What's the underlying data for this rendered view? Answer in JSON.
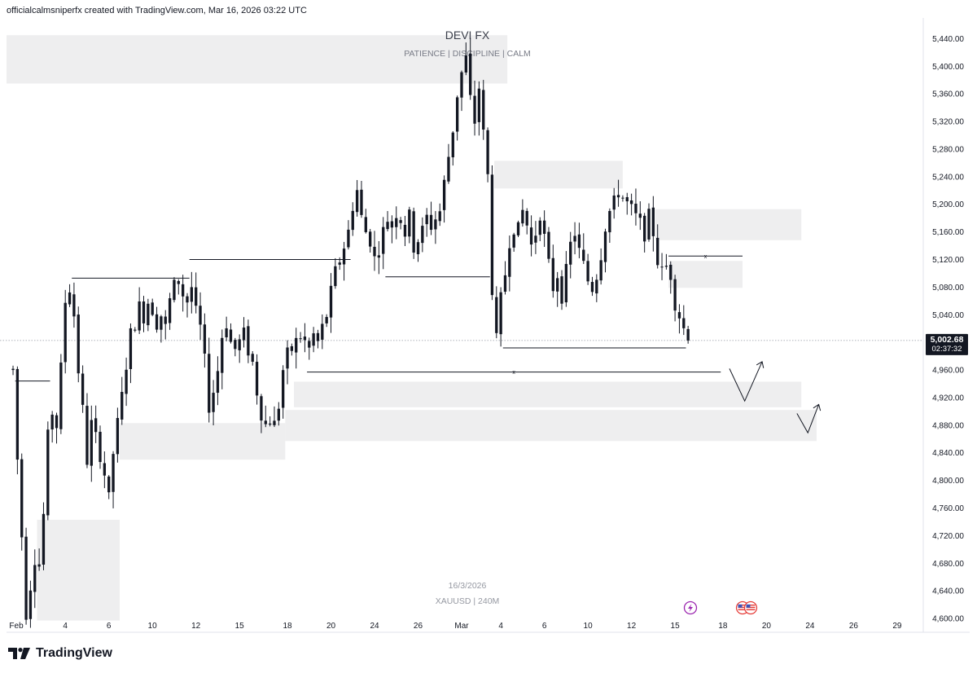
{
  "header": {
    "credit": "officialcalmsniperfx created with TradingView.com, Mar 16, 2026 03:22 UTC"
  },
  "watermark": {
    "title": "DEVI FX",
    "subtitle": "PATIENCE   |   DISCIPLINE   |  CALM",
    "date": "16/3/2026",
    "symbol": "XAUUSD | 240M"
  },
  "price_label": {
    "value": "5,002.68",
    "countdown": "02:37:32"
  },
  "brand": {
    "name": "TradingView"
  },
  "colors": {
    "bull": "#131722",
    "bear": "#131722",
    "zone": "#eeeeef",
    "line": "#131722",
    "lightning": "#9c27b0",
    "flag": "#e53935"
  },
  "icons": {
    "event_1": "lightning-icon",
    "event_2": "us-flag-icon"
  },
  "chart_data": {
    "type": "candlestick",
    "symbol": "XAUUSD",
    "timeframe": "240M",
    "y_ticks": [
      5440,
      5400,
      5360,
      5320,
      5280,
      5240,
      5200,
      5160,
      5120,
      5080,
      5040,
      4960,
      4920,
      4880,
      4840,
      4800,
      4760,
      4720,
      4680,
      4640,
      4600
    ],
    "y_tick_labels": [
      "5,440.00",
      "5,400.00",
      "5,360.00",
      "5,320.00",
      "5,280.00",
      "5,240.00",
      "5,200.00",
      "5,160.00",
      "5,120.00",
      "5,080.00",
      "5,040.00",
      "4,960.00",
      "4,920.00",
      "4,880.00",
      "4,840.00",
      "4,800.00",
      "4,760.00",
      "4,720.00",
      "4,680.00",
      "4,640.00",
      "4,600.00"
    ],
    "y_range": [
      4580,
      5470
    ],
    "x_labels": [
      "Feb",
      "4",
      "6",
      "10",
      "12",
      "15",
      "18",
      "20",
      "24",
      "26",
      "Mar",
      "4",
      "6",
      "10",
      "12",
      "15",
      "18",
      "20",
      "24",
      "26",
      "29"
    ],
    "x_label_slots": [
      0,
      12,
      22,
      32,
      42,
      52,
      63,
      73,
      83,
      93,
      103,
      112,
      122,
      132,
      142,
      152,
      163,
      173,
      183,
      193,
      203
    ],
    "x_slot_range": [
      -1.5,
      209
    ],
    "current_price": 5002.68,
    "anchors": [
      [
        0,
        4960
      ],
      [
        1,
        4830
      ],
      [
        2,
        4720
      ],
      [
        3,
        4610
      ],
      [
        4,
        4650
      ],
      [
        5,
        4690
      ],
      [
        6,
        4680
      ],
      [
        7,
        4750
      ],
      [
        8,
        4860
      ],
      [
        9,
        4900
      ],
      [
        10,
        4880
      ],
      [
        11,
        4960
      ],
      [
        12,
        5060
      ],
      [
        13,
        5080
      ],
      [
        14,
        5040
      ],
      [
        15,
        4960
      ],
      [
        16,
        4900
      ],
      [
        17,
        4830
      ],
      [
        18,
        4880
      ],
      [
        19,
        4860
      ],
      [
        20,
        4840
      ],
      [
        21,
        4810
      ],
      [
        22,
        4770
      ],
      [
        23,
        4840
      ],
      [
        24,
        4880
      ],
      [
        25,
        4920
      ],
      [
        26,
        4970
      ],
      [
        27,
        5010
      ],
      [
        28,
        5030
      ],
      [
        29,
        5050
      ],
      [
        30,
        5040
      ],
      [
        31,
        5060
      ],
      [
        32,
        5050
      ],
      [
        33,
        5030
      ],
      [
        34,
        5040
      ],
      [
        35,
        5020
      ],
      [
        36,
        5060
      ],
      [
        37,
        5080
      ],
      [
        38,
        5090
      ],
      [
        39,
        5070
      ],
      [
        40,
        5060
      ],
      [
        41,
        5080
      ],
      [
        42,
        5040
      ],
      [
        43,
        5020
      ],
      [
        44,
        4970
      ],
      [
        45,
        4910
      ],
      [
        46,
        4930
      ],
      [
        47,
        4960
      ],
      [
        48,
        5010
      ],
      [
        49,
        5030
      ],
      [
        50,
        5000
      ],
      [
        51,
        4990
      ],
      [
        52,
        5000
      ],
      [
        53,
        5010
      ],
      [
        54,
        4990
      ],
      [
        55,
        4970
      ],
      [
        56,
        4930
      ],
      [
        57,
        4900
      ],
      [
        58,
        4880
      ],
      [
        59,
        4890
      ],
      [
        60,
        4880
      ],
      [
        61,
        4910
      ],
      [
        62,
        4960
      ],
      [
        63,
        4980
      ],
      [
        64,
        4990
      ],
      [
        65,
        5000
      ],
      [
        66,
        5010
      ],
      [
        67,
        5000
      ],
      [
        68,
        4990
      ],
      [
        69,
        5010
      ],
      [
        70,
        5000
      ],
      [
        71,
        5020
      ],
      [
        72,
        5040
      ],
      [
        73,
        5070
      ],
      [
        74,
        5100
      ],
      [
        75,
        5120
      ],
      [
        76,
        5140
      ],
      [
        77,
        5160
      ],
      [
        78,
        5200
      ],
      [
        79,
        5220
      ],
      [
        80,
        5180
      ],
      [
        81,
        5160
      ],
      [
        82,
        5150
      ],
      [
        83,
        5120
      ],
      [
        84,
        5140
      ],
      [
        85,
        5160
      ],
      [
        86,
        5180
      ],
      [
        87,
        5170
      ],
      [
        88,
        5190
      ],
      [
        89,
        5180
      ],
      [
        90,
        5160
      ],
      [
        91,
        5180
      ],
      [
        92,
        5140
      ],
      [
        93,
        5150
      ],
      [
        94,
        5160
      ],
      [
        95,
        5180
      ],
      [
        96,
        5170
      ],
      [
        97,
        5180
      ],
      [
        98,
        5190
      ],
      [
        99,
        5230
      ],
      [
        100,
        5270
      ],
      [
        101,
        5310
      ],
      [
        102,
        5360
      ],
      [
        103,
        5390
      ],
      [
        104,
        5410
      ],
      [
        105,
        5350
      ],
      [
        106,
        5320
      ],
      [
        107,
        5370
      ],
      [
        108,
        5300
      ],
      [
        109,
        5240
      ],
      [
        110,
        5080
      ],
      [
        111,
        5000
      ],
      [
        112,
        5060
      ],
      [
        113,
        5100
      ],
      [
        114,
        5150
      ],
      [
        115,
        5170
      ],
      [
        116,
        5160
      ],
      [
        117,
        5190
      ],
      [
        118,
        5170
      ],
      [
        119,
        5140
      ],
      [
        120,
        5160
      ],
      [
        121,
        5190
      ],
      [
        122,
        5150
      ],
      [
        123,
        5110
      ],
      [
        124,
        5080
      ],
      [
        125,
        5100
      ],
      [
        126,
        5070
      ],
      [
        127,
        5100
      ],
      [
        128,
        5140
      ],
      [
        129,
        5160
      ],
      [
        130,
        5130
      ],
      [
        131,
        5110
      ],
      [
        132,
        5090
      ],
      [
        133,
        5080
      ],
      [
        134,
        5100
      ],
      [
        135,
        5130
      ],
      [
        136,
        5170
      ],
      [
        137,
        5190
      ],
      [
        138,
        5200
      ],
      [
        139,
        5220
      ],
      [
        140,
        5210
      ],
      [
        141,
        5200
      ],
      [
        142,
        5190
      ],
      [
        143,
        5180
      ],
      [
        144,
        5170
      ],
      [
        145,
        5160
      ],
      [
        146,
        5180
      ],
      [
        147,
        5160
      ],
      [
        148,
        5120
      ],
      [
        149,
        5100
      ],
      [
        150,
        5110
      ],
      [
        151,
        5100
      ],
      [
        152,
        5060
      ],
      [
        153,
        5040
      ],
      [
        154,
        5020
      ],
      [
        155,
        5002.68
      ]
    ],
    "zones": [
      {
        "from_slot": -1.5,
        "to_slot": 113.5,
        "top": 5445,
        "bottom": 5375
      },
      {
        "from_slot": 110.5,
        "to_slot": 140,
        "top": 5263,
        "bottom": 5223
      },
      {
        "from_slot": 147.5,
        "to_slot": 181,
        "top": 5193,
        "bottom": 5148
      },
      {
        "from_slot": 150.5,
        "to_slot": 167.5,
        "top": 5118,
        "bottom": 5079
      },
      {
        "from_slot": 5.5,
        "to_slot": 24.5,
        "top": 4743,
        "bottom": 4597
      },
      {
        "from_slot": 24.5,
        "to_slot": 62.5,
        "top": 4883,
        "bottom": 4830
      },
      {
        "from_slot": 64.5,
        "to_slot": 181,
        "top": 4943,
        "bottom": 4906
      },
      {
        "from_slot": 62.5,
        "to_slot": 184.5,
        "top": 4902,
        "bottom": 4857
      }
    ],
    "levels": [
      {
        "from_slot": 0.5,
        "to_slot": 8.5,
        "price": 4944
      },
      {
        "from_slot": 13.5,
        "to_slot": 40.5,
        "price": 5093
      },
      {
        "from_slot": 40.5,
        "to_slot": 77.5,
        "price": 5120
      },
      {
        "from_slot": 85.5,
        "to_slot": 109.5,
        "price": 5095
      },
      {
        "from_slot": 150.5,
        "to_slot": 167.5,
        "price": 5125,
        "marker": "x"
      },
      {
        "from_slot": 67.5,
        "to_slot": 162.5,
        "price": 4957,
        "marker": "x"
      },
      {
        "from_slot": 112.5,
        "to_slot": 154.5,
        "price": 4992
      }
    ],
    "projections": [
      {
        "points": [
          [
            164.5,
            4962
          ],
          [
            168,
            4915
          ],
          [
            172,
            4972
          ]
        ]
      },
      {
        "points": [
          [
            180,
            4897
          ],
          [
            182.5,
            4869
          ],
          [
            185,
            4910
          ]
        ]
      }
    ]
  }
}
